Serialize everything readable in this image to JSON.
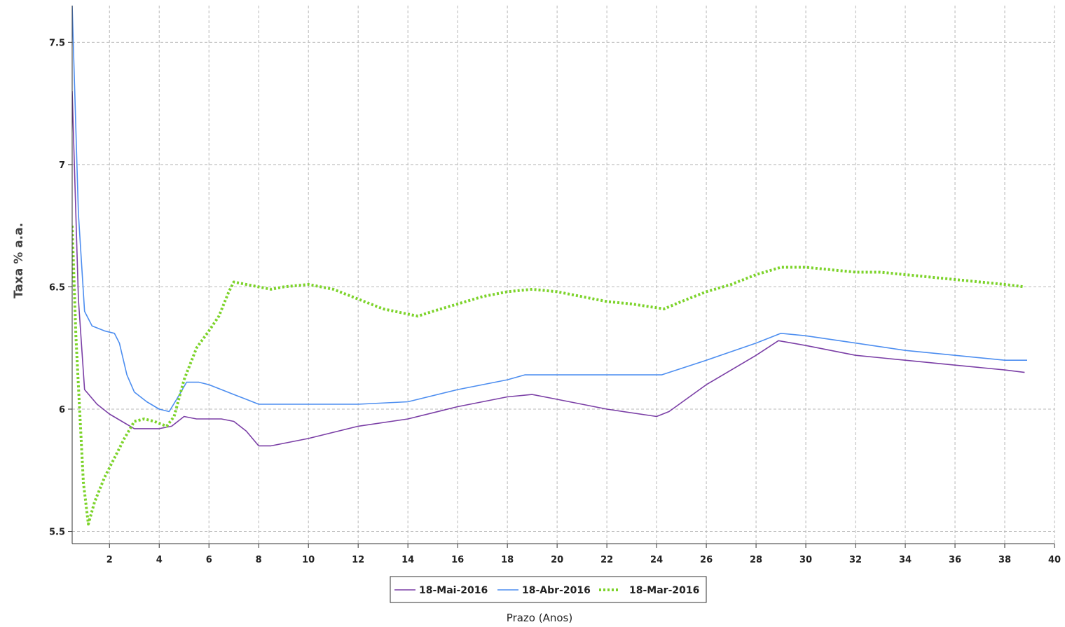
{
  "chart_data": {
    "type": "line",
    "xlabel": "Prazo (Anos)",
    "ylabel": "Taxa % a.a.",
    "xlim": [
      0.5,
      40
    ],
    "ylim": [
      5.45,
      7.65
    ],
    "xticks": [
      2,
      4,
      6,
      8,
      10,
      12,
      14,
      16,
      18,
      20,
      22,
      24,
      26,
      28,
      30,
      32,
      34,
      36,
      38,
      40
    ],
    "yticks": [
      5.5,
      6,
      6.5,
      7,
      7.5
    ],
    "grid": true,
    "legend_position": "bottom",
    "series": [
      {
        "name": "18-Mai-2016",
        "color": "#7b3fa6",
        "style": "solid",
        "points": [
          [
            0.5,
            7.3
          ],
          [
            0.75,
            6.45
          ],
          [
            1.0,
            6.08
          ],
          [
            1.5,
            6.02
          ],
          [
            2.0,
            5.98
          ],
          [
            2.5,
            5.95
          ],
          [
            3.0,
            5.92
          ],
          [
            3.5,
            5.92
          ],
          [
            4.0,
            5.92
          ],
          [
            4.5,
            5.93
          ],
          [
            5.0,
            5.97
          ],
          [
            5.5,
            5.96
          ],
          [
            6.0,
            5.96
          ],
          [
            6.5,
            5.96
          ],
          [
            7.0,
            5.95
          ],
          [
            7.5,
            5.91
          ],
          [
            8.0,
            5.85
          ],
          [
            8.5,
            5.85
          ],
          [
            9.0,
            5.86
          ],
          [
            10.0,
            5.88
          ],
          [
            12.0,
            5.93
          ],
          [
            14.0,
            5.96
          ],
          [
            16.0,
            6.01
          ],
          [
            18.0,
            6.05
          ],
          [
            19.0,
            6.06
          ],
          [
            20.0,
            6.04
          ],
          [
            22.0,
            6.0
          ],
          [
            24.0,
            5.97
          ],
          [
            24.5,
            5.99
          ],
          [
            26.0,
            6.1
          ],
          [
            28.0,
            6.22
          ],
          [
            28.9,
            6.28
          ],
          [
            30.0,
            6.26
          ],
          [
            32.0,
            6.22
          ],
          [
            34.0,
            6.2
          ],
          [
            36.0,
            6.18
          ],
          [
            38.0,
            6.16
          ],
          [
            38.8,
            6.15
          ]
        ]
      },
      {
        "name": "18-Abr-2016",
        "color": "#4d8ef0",
        "style": "solid",
        "points": [
          [
            0.5,
            7.65
          ],
          [
            0.75,
            6.8
          ],
          [
            1.0,
            6.4
          ],
          [
            1.3,
            6.34
          ],
          [
            1.8,
            6.32
          ],
          [
            2.2,
            6.31
          ],
          [
            2.4,
            6.27
          ],
          [
            2.7,
            6.14
          ],
          [
            3.0,
            6.07
          ],
          [
            3.5,
            6.03
          ],
          [
            4.0,
            6.0
          ],
          [
            4.4,
            5.99
          ],
          [
            4.7,
            6.04
          ],
          [
            5.1,
            6.11
          ],
          [
            5.6,
            6.11
          ],
          [
            6.0,
            6.1
          ],
          [
            6.5,
            6.08
          ],
          [
            7.0,
            6.06
          ],
          [
            7.5,
            6.04
          ],
          [
            8.0,
            6.02
          ],
          [
            12.0,
            6.02
          ],
          [
            14.0,
            6.03
          ],
          [
            16.0,
            6.08
          ],
          [
            18.0,
            6.12
          ],
          [
            18.7,
            6.14
          ],
          [
            24.2,
            6.14
          ],
          [
            26.0,
            6.2
          ],
          [
            28.0,
            6.27
          ],
          [
            29.0,
            6.31
          ],
          [
            30.0,
            6.3
          ],
          [
            32.0,
            6.27
          ],
          [
            34.0,
            6.24
          ],
          [
            36.0,
            6.22
          ],
          [
            38.0,
            6.2
          ],
          [
            38.9,
            6.2
          ]
        ]
      },
      {
        "name": "18-Mar-2016",
        "color": "#7cd32a",
        "style": "dotted",
        "points": [
          [
            0.5,
            6.75
          ],
          [
            0.65,
            6.3
          ],
          [
            0.8,
            6.0
          ],
          [
            0.95,
            5.7
          ],
          [
            1.15,
            5.53
          ],
          [
            1.4,
            5.62
          ],
          [
            1.8,
            5.72
          ],
          [
            2.2,
            5.8
          ],
          [
            2.6,
            5.88
          ],
          [
            3.0,
            5.95
          ],
          [
            3.4,
            5.96
          ],
          [
            3.8,
            5.95
          ],
          [
            4.3,
            5.93
          ],
          [
            4.6,
            5.97
          ],
          [
            5.0,
            6.12
          ],
          [
            5.5,
            6.25
          ],
          [
            6.0,
            6.32
          ],
          [
            6.4,
            6.38
          ],
          [
            6.8,
            6.48
          ],
          [
            7.0,
            6.52
          ],
          [
            7.5,
            6.51
          ],
          [
            8.0,
            6.5
          ],
          [
            8.5,
            6.49
          ],
          [
            9.0,
            6.5
          ],
          [
            10.0,
            6.51
          ],
          [
            11.0,
            6.49
          ],
          [
            12.0,
            6.45
          ],
          [
            13.0,
            6.41
          ],
          [
            14.4,
            6.38
          ],
          [
            15.0,
            6.4
          ],
          [
            16.0,
            6.43
          ],
          [
            17.0,
            6.46
          ],
          [
            18.0,
            6.48
          ],
          [
            19.0,
            6.49
          ],
          [
            20.0,
            6.48
          ],
          [
            21.0,
            6.46
          ],
          [
            22.0,
            6.44
          ],
          [
            23.0,
            6.43
          ],
          [
            24.3,
            6.41
          ],
          [
            25.0,
            6.44
          ],
          [
            26.0,
            6.48
          ],
          [
            27.0,
            6.51
          ],
          [
            28.0,
            6.55
          ],
          [
            29.0,
            6.58
          ],
          [
            30.0,
            6.58
          ],
          [
            31.0,
            6.57
          ],
          [
            32.0,
            6.56
          ],
          [
            33.0,
            6.56
          ],
          [
            34.0,
            6.55
          ],
          [
            35.0,
            6.54
          ],
          [
            36.0,
            6.53
          ],
          [
            37.0,
            6.52
          ],
          [
            38.0,
            6.51
          ],
          [
            38.8,
            6.5
          ]
        ]
      }
    ]
  }
}
